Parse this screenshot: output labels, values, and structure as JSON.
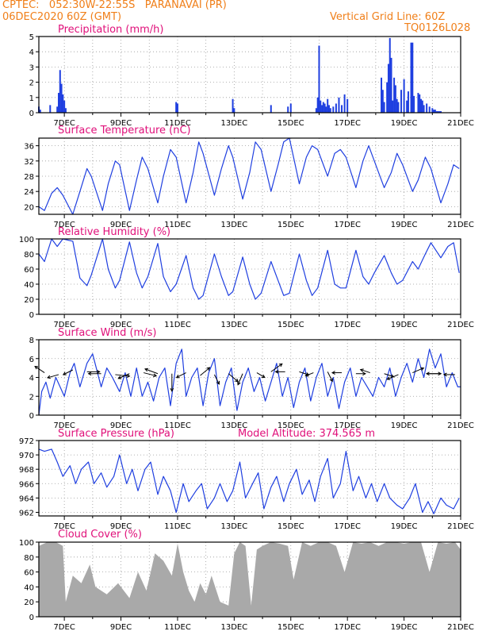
{
  "header": {
    "line1_left": "CPTEC:   052:30W-22:55S   PARANAVAI (PR)",
    "line2_left": "06DEC2020 60Z (GMT)",
    "line2_right": "Vertical Grid Line: 60Z",
    "line3_right": "TQ0126L028"
  },
  "colors": {
    "header": "#f07f19",
    "title": "#e0107a",
    "line": "#1f3fe0",
    "bars": "#1f3fe0",
    "cloud": "#a9a9a9"
  },
  "x_axis": {
    "tick_labels": [
      "7DEC",
      "9DEC",
      "11DEC",
      "13DEC",
      "15DEC",
      "17DEC",
      "19DEC",
      "21DEC"
    ],
    "tick_days": [
      7,
      9,
      11,
      13,
      15,
      17,
      19,
      21
    ],
    "range_days": [
      6.1,
      21.0
    ]
  },
  "chart_data": [
    {
      "type": "bar",
      "title": "Precipitation (mm/h)",
      "ylim": [
        0,
        5
      ],
      "yticks": [
        "0",
        "1",
        "2",
        "3",
        "4",
        "5"
      ],
      "x": [
        6.1,
        6.15,
        6.5,
        6.75,
        6.8,
        6.85,
        6.9,
        6.95,
        7.0,
        7.05,
        10.95,
        11.0,
        12.95,
        13.0,
        14.3,
        14.9,
        15.0,
        15.9,
        15.95,
        16.0,
        16.05,
        16.1,
        16.15,
        16.2,
        16.25,
        16.3,
        16.35,
        16.4,
        16.5,
        16.6,
        16.7,
        16.8,
        16.9,
        17.0,
        18.2,
        18.25,
        18.3,
        18.4,
        18.45,
        18.5,
        18.55,
        18.6,
        18.65,
        18.7,
        18.75,
        18.8,
        18.9,
        19.0,
        19.1,
        19.15,
        19.25,
        19.3,
        19.35,
        19.5,
        19.55,
        19.6,
        19.65,
        19.7,
        19.8,
        19.9,
        20.0,
        20.05,
        20.1,
        20.15,
        20.2,
        20.25,
        20.3
      ],
      "values": [
        0.4,
        0.2,
        0.5,
        0.4,
        1.3,
        2.8,
        1.9,
        1.2,
        0.8,
        0.3,
        0.7,
        0.6,
        0.9,
        0.3,
        0.5,
        0.4,
        0.6,
        0.3,
        1.0,
        4.4,
        0.8,
        0.5,
        0.7,
        0.6,
        0.4,
        0.9,
        0.5,
        0.3,
        0.4,
        0.6,
        1.0,
        0.5,
        1.2,
        0.9,
        2.3,
        1.5,
        0.7,
        2.0,
        3.2,
        4.9,
        3.6,
        0.8,
        2.3,
        1.8,
        0.9,
        0.7,
        1.5,
        2.2,
        0.8,
        1.4,
        4.6,
        4.6,
        1.1,
        1.3,
        1.2,
        0.9,
        0.8,
        0.5,
        0.6,
        0.4,
        0.3,
        0.2,
        0.2,
        0.1,
        0.1,
        0.1,
        0.1
      ]
    },
    {
      "type": "line",
      "title": "Surface Temperature (nC)",
      "ylim": [
        18,
        38
      ],
      "yticks": [
        "20",
        "24",
        "28",
        "32",
        "36"
      ],
      "x": [
        6.1,
        6.3,
        6.55,
        6.75,
        6.95,
        7.3,
        7.55,
        7.8,
        7.95,
        8.35,
        8.55,
        8.8,
        8.95,
        9.3,
        9.55,
        9.75,
        9.95,
        10.3,
        10.5,
        10.75,
        10.95,
        11.3,
        11.55,
        11.75,
        11.9,
        12.3,
        12.55,
        12.8,
        12.95,
        13.3,
        13.55,
        13.75,
        13.95,
        14.3,
        14.55,
        14.75,
        14.95,
        15.3,
        15.55,
        15.75,
        15.95,
        16.3,
        16.55,
        16.75,
        16.95,
        17.3,
        17.55,
        17.75,
        17.95,
        18.3,
        18.55,
        18.75,
        18.95,
        19.3,
        19.5,
        19.75,
        19.95,
        20.3,
        20.55,
        20.75,
        20.95
      ],
      "values": [
        20,
        19,
        23.5,
        25,
        23,
        18,
        24,
        30,
        28,
        19,
        26,
        32,
        31,
        19,
        27,
        33,
        30,
        21,
        28,
        35,
        33,
        21,
        29,
        37,
        34,
        23,
        30,
        36,
        33,
        22,
        29,
        37,
        35,
        24,
        31,
        37,
        38,
        26,
        33,
        36,
        35,
        28,
        34,
        35,
        33,
        25,
        32,
        36,
        32,
        25,
        29,
        34,
        31,
        24,
        27,
        33,
        30,
        21,
        26,
        31,
        30
      ]
    },
    {
      "type": "line",
      "title": "Relative Humidity (%)",
      "ylim": [
        0,
        100
      ],
      "yticks": [
        "0",
        "20",
        "40",
        "60",
        "80",
        "100"
      ],
      "x": [
        6.1,
        6.3,
        6.55,
        6.75,
        6.95,
        7.3,
        7.55,
        7.8,
        7.95,
        8.35,
        8.55,
        8.8,
        8.95,
        9.3,
        9.55,
        9.75,
        9.95,
        10.3,
        10.5,
        10.75,
        10.95,
        11.3,
        11.55,
        11.75,
        11.9,
        12.3,
        12.55,
        12.8,
        12.95,
        13.3,
        13.55,
        13.75,
        13.95,
        14.3,
        14.55,
        14.75,
        14.95,
        15.3,
        15.55,
        15.75,
        15.95,
        16.3,
        16.55,
        16.75,
        16.95,
        17.3,
        17.55,
        17.75,
        17.95,
        18.3,
        18.55,
        18.75,
        18.95,
        19.3,
        19.5,
        19.75,
        19.95,
        20.3,
        20.55,
        20.75,
        20.95
      ],
      "values": [
        80,
        70,
        100,
        90,
        100,
        97,
        48,
        38,
        52,
        100,
        60,
        35,
        45,
        96,
        55,
        35,
        50,
        94,
        50,
        30,
        40,
        78,
        35,
        20,
        25,
        80,
        50,
        25,
        30,
        76,
        40,
        20,
        28,
        70,
        45,
        25,
        28,
        80,
        45,
        25,
        35,
        85,
        40,
        35,
        35,
        85,
        50,
        40,
        55,
        78,
        55,
        40,
        45,
        70,
        60,
        80,
        95,
        75,
        90,
        95,
        55
      ]
    },
    {
      "type": "line",
      "title": "Surface Wind (m/s)",
      "ylim": [
        0,
        8
      ],
      "yticks": [
        "0",
        "2",
        "4",
        "6",
        "8"
      ],
      "x": [
        6.1,
        6.2,
        6.35,
        6.5,
        6.7,
        6.85,
        7.0,
        7.2,
        7.35,
        7.55,
        7.8,
        8.0,
        8.3,
        8.5,
        8.7,
        8.95,
        9.15,
        9.35,
        9.55,
        9.75,
        9.95,
        10.15,
        10.35,
        10.55,
        10.75,
        10.95,
        11.15,
        11.3,
        11.5,
        11.7,
        11.9,
        12.1,
        12.3,
        12.5,
        12.7,
        12.9,
        13.1,
        13.3,
        13.5,
        13.7,
        13.9,
        14.1,
        14.3,
        14.5,
        14.7,
        14.9,
        15.1,
        15.3,
        15.5,
        15.7,
        15.9,
        16.1,
        16.3,
        16.5,
        16.7,
        16.9,
        17.1,
        17.3,
        17.5,
        17.7,
        17.9,
        18.1,
        18.3,
        18.5,
        18.7,
        18.9,
        19.1,
        19.3,
        19.5,
        19.7,
        19.9,
        20.1,
        20.3,
        20.5,
        20.7,
        20.9,
        21.0
      ],
      "values": [
        0,
        2.5,
        3.5,
        1.8,
        4,
        3,
        2,
        4.5,
        5.5,
        3,
        5.5,
        6.5,
        3,
        5,
        4,
        2.5,
        4.5,
        2,
        5,
        2,
        3.5,
        1.5,
        4,
        5,
        1,
        5.5,
        7,
        2,
        4,
        5,
        1,
        4.5,
        6,
        1,
        3.5,
        5,
        0.5,
        3.5,
        5,
        2.5,
        4,
        1.5,
        3.5,
        5.5,
        2,
        4,
        0.8,
        3.5,
        5,
        1.5,
        4,
        5.5,
        2,
        4,
        0.7,
        3.5,
        5,
        2,
        4,
        3,
        2,
        4,
        3,
        5,
        2,
        4,
        5.5,
        3.5,
        6,
        4,
        7,
        5,
        6.5,
        3,
        4.5,
        3,
        3
      ]
    },
    {
      "type": "line",
      "title": "Surface Pressure (hPa)",
      "subtitle": "Model Altitude: 374.565 m",
      "ylim": [
        961.5,
        972
      ],
      "yticks": [
        "962",
        "964",
        "966",
        "968",
        "970",
        "972"
      ],
      "x": [
        6.1,
        6.3,
        6.55,
        6.75,
        6.95,
        7.2,
        7.4,
        7.6,
        7.85,
        8.05,
        8.3,
        8.5,
        8.75,
        8.95,
        9.2,
        9.4,
        9.6,
        9.85,
        10.05,
        10.3,
        10.5,
        10.75,
        10.95,
        11.2,
        11.4,
        11.65,
        11.85,
        12.05,
        12.3,
        12.5,
        12.75,
        12.95,
        13.2,
        13.4,
        13.65,
        13.85,
        14.05,
        14.3,
        14.5,
        14.75,
        14.95,
        15.2,
        15.4,
        15.65,
        15.85,
        16.05,
        16.3,
        16.5,
        16.75,
        16.95,
        17.2,
        17.4,
        17.65,
        17.85,
        18.05,
        18.3,
        18.5,
        18.75,
        18.95,
        19.2,
        19.4,
        19.65,
        19.85,
        20.05,
        20.3,
        20.5,
        20.75,
        20.95
      ],
      "values": [
        970.8,
        970.5,
        970.8,
        969,
        967,
        968.5,
        966,
        968,
        969,
        966,
        967.5,
        965.5,
        967,
        970,
        966,
        968,
        965,
        968,
        969,
        964.5,
        967,
        965,
        962,
        966,
        963.5,
        965,
        966,
        962.5,
        964,
        966,
        963.5,
        965,
        969,
        964,
        966,
        967.5,
        962.5,
        965.5,
        967,
        963.5,
        966,
        968,
        964.5,
        966.5,
        963.5,
        967,
        969.5,
        964,
        966,
        970.5,
        965,
        967,
        964,
        966,
        963.5,
        966,
        964,
        963,
        962.5,
        964,
        966,
        962,
        963.5,
        961.8,
        964,
        963,
        962.5,
        964
      ]
    },
    {
      "type": "area",
      "title": "Cloud Cover (%)",
      "ylim": [
        0,
        100
      ],
      "yticks": [
        "0",
        "20",
        "40",
        "60",
        "80",
        "100"
      ],
      "x": [
        6.1,
        6.4,
        6.7,
        6.95,
        7.05,
        7.3,
        7.6,
        7.9,
        8.1,
        8.5,
        8.9,
        9.3,
        9.6,
        9.9,
        10.2,
        10.5,
        10.8,
        11.0,
        11.2,
        11.4,
        11.6,
        11.8,
        12.0,
        12.2,
        12.5,
        12.8,
        13.0,
        13.2,
        13.4,
        13.6,
        13.8,
        14.0,
        14.3,
        14.6,
        14.9,
        15.1,
        15.4,
        15.7,
        16.0,
        16.3,
        16.6,
        16.9,
        17.2,
        17.5,
        17.8,
        18.1,
        18.4,
        18.7,
        19.0,
        19.3,
        19.6,
        19.9,
        20.2,
        20.5,
        20.8,
        21.0
      ],
      "values": [
        95,
        100,
        100,
        95,
        20,
        55,
        45,
        70,
        40,
        30,
        45,
        25,
        60,
        35,
        85,
        75,
        55,
        98,
        60,
        35,
        20,
        45,
        30,
        55,
        20,
        15,
        85,
        100,
        95,
        15,
        90,
        95,
        100,
        98,
        95,
        50,
        100,
        95,
        100,
        100,
        95,
        60,
        100,
        98,
        100,
        95,
        100,
        100,
        98,
        100,
        100,
        60,
        100,
        98,
        100,
        90
      ]
    }
  ]
}
